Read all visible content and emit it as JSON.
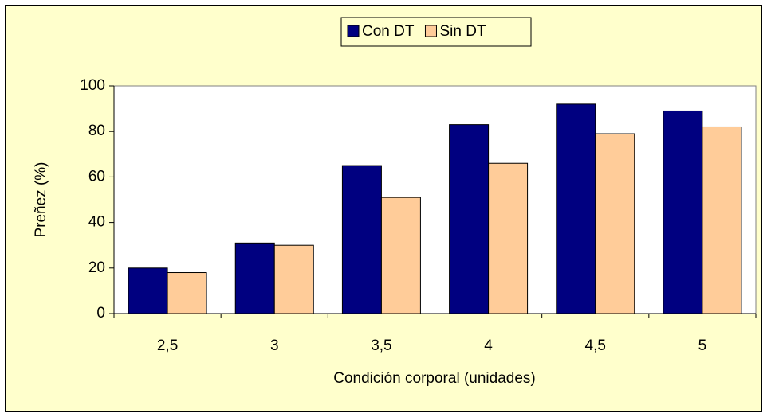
{
  "chart_data": {
    "type": "bar",
    "categories": [
      "2,5",
      "3",
      "3,5",
      "4",
      "4,5",
      "5"
    ],
    "series": [
      {
        "name": "Con DT",
        "color": "#000080",
        "values": [
          20,
          31,
          65,
          83,
          92,
          89
        ]
      },
      {
        "name": "Sin DT",
        "color": "#FFCC99",
        "values": [
          18,
          30,
          51,
          66,
          79,
          82
        ]
      }
    ],
    "y_label": "Preñez (%)",
    "x_label": "Condición corporal (unidades)",
    "ylim": [
      0,
      100
    ],
    "yticks": [
      0,
      20,
      40,
      60,
      80,
      100
    ],
    "legend": "top",
    "grid": false
  }
}
